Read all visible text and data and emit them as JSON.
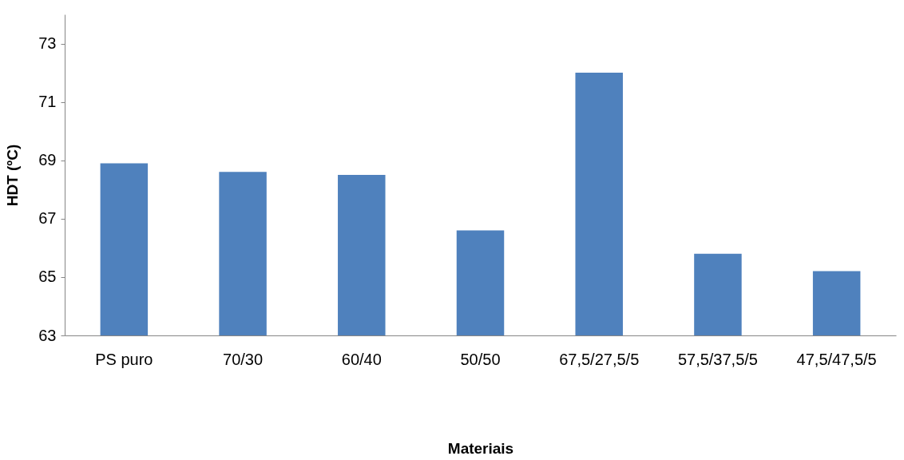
{
  "chart_data": {
    "type": "bar",
    "xlabel": "Materiais",
    "ylabel": "HDT (ºC)",
    "categories": [
      "PS puro",
      "70/30",
      "60/40",
      "50/50",
      "67,5/27,5/5",
      "57,5/37,5/5",
      "47,5/47,5/5"
    ],
    "values": [
      68.9,
      68.6,
      68.5,
      66.6,
      72.0,
      65.8,
      65.2
    ],
    "color": "#4f81bd",
    "ylim": [
      63,
      74
    ],
    "yticks": [
      63,
      65,
      67,
      69,
      71,
      73
    ],
    "grid": false
  }
}
